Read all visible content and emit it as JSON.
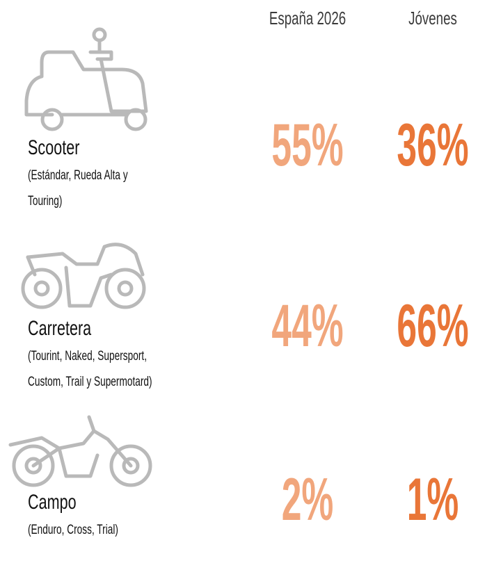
{
  "columns": [
    "España 2026",
    "Jóvenes"
  ],
  "rows": [
    {
      "name": "Scooter",
      "description": [
        "(Estándar, Rueda Alta y",
        "Touring)"
      ],
      "values": [
        "55%",
        "36%"
      ]
    },
    {
      "name": "Carretera",
      "description": [
        "(Tourint, Naked, Supersport,",
        "Custom, Trail y Supermotard)"
      ],
      "values": [
        "44%",
        "66%"
      ]
    },
    {
      "name": "Campo",
      "description": [
        "(Enduro, Cross, Trial)"
      ],
      "values": [
        "2%",
        "1%"
      ]
    }
  ]
}
